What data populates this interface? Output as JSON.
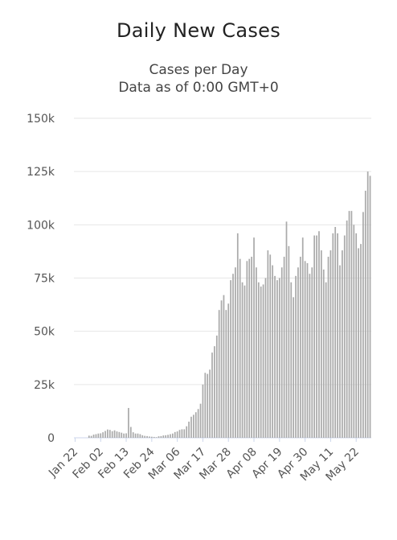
{
  "chart_data": {
    "type": "bar",
    "title": "Daily New Cases",
    "subtitle": "Cases per Day",
    "subtitle2": "Data as of 0:00 GMT+0",
    "xlabel": "",
    "ylabel": "",
    "ylim": [
      0,
      150000
    ],
    "yticks": [
      "0",
      "25k",
      "50k",
      "75k",
      "100k",
      "125k",
      "150k"
    ],
    "x_tick_labels": [
      "Jan 22",
      "Feb 02",
      "Feb 13",
      "Feb 24",
      "Mar 06",
      "Mar 17",
      "Mar 28",
      "Apr 08",
      "Apr 19",
      "Apr 30",
      "May 11",
      "May 22"
    ],
    "x_tick_every": 11,
    "grid": true,
    "colors": {
      "bar": "#aaaaaa",
      "grid": "#e6e6e6",
      "axis": "#ccd6eb"
    },
    "start_label": "Jan 22",
    "values": [
      0,
      0,
      0,
      0,
      0,
      0,
      1000,
      900,
      1500,
      1700,
      2000,
      2100,
      2600,
      3200,
      3900,
      3700,
      3100,
      3500,
      3000,
      2700,
      2400,
      2000,
      2100,
      14000,
      5100,
      2600,
      2000,
      2000,
      1700,
      1200,
      900,
      800,
      600,
      500,
      400,
      300,
      700,
      800,
      1100,
      1200,
      1400,
      1700,
      2000,
      2700,
      3000,
      3700,
      4000,
      4000,
      5400,
      7600,
      9900,
      10800,
      12000,
      13500,
      16000,
      25000,
      30500,
      30000,
      32000,
      40000,
      43000,
      48000,
      60000,
      64500,
      67000,
      60000,
      63000,
      74000,
      77000,
      80000,
      96000,
      84000,
      73000,
      71500,
      83000,
      84000,
      85000,
      94000,
      80000,
      73000,
      71000,
      72000,
      75000,
      88000,
      86000,
      81000,
      76000,
      74000,
      75000,
      80000,
      85000,
      101500,
      90000,
      73000,
      66000,
      76000,
      80000,
      85000,
      94000,
      83000,
      82000,
      77000,
      80000,
      95000,
      95000,
      97000,
      88000,
      79000,
      73000,
      85000,
      88000,
      96000,
      99000,
      96000,
      81000,
      88000,
      95000,
      102000,
      106500,
      106500,
      100000,
      96000,
      89000,
      91000,
      106000,
      116000,
      125000,
      123000
    ]
  }
}
